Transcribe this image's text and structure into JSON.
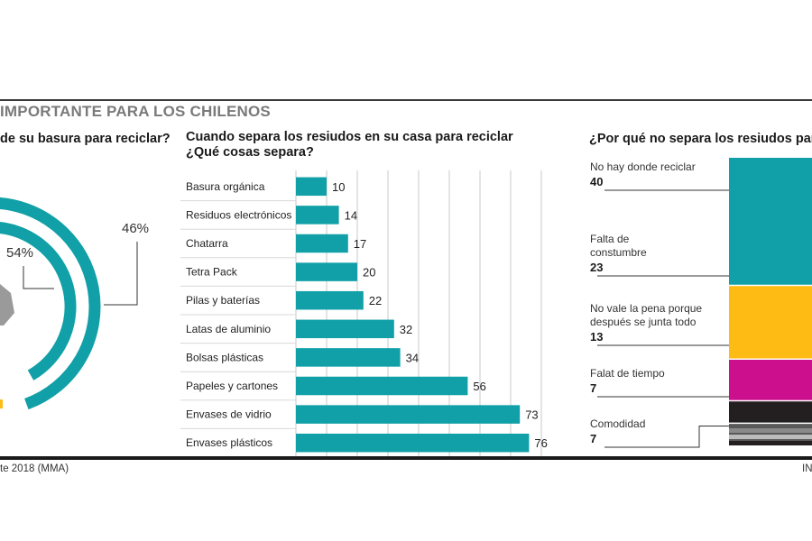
{
  "header": {
    "title": "IMPORTANTE PARA LOS CHILENOS"
  },
  "left_panel": {
    "question": "de su basura para reciclar?",
    "source": "te 2018 (MMA)"
  },
  "middle_panel": {
    "question_line1": "Cuando separa los resiudos en su casa para reciclar",
    "question_line2": "¿Qué cosas separa?"
  },
  "right_panel": {
    "question": "¿Por qué no separa los resiudos para r",
    "credit": "IN"
  },
  "colors": {
    "teal": "#11a0a7",
    "yellow": "#fdbb14",
    "magenta": "#cc0f8c",
    "dark": "#231f20",
    "dark_gray": "#595959",
    "mid_gray": "#8a8a8a",
    "light_gray": "#bcbcbc",
    "grid": "#c8c8c8"
  },
  "chart_data": [
    {
      "type": "pie",
      "title": "",
      "slices": [
        {
          "label": "46%",
          "value": 46,
          "color": "#11a0a7"
        },
        {
          "label": "54%",
          "value": 54,
          "color": "#11a0a7"
        }
      ]
    },
    {
      "type": "bar",
      "orientation": "horizontal",
      "title": "Cuando separa los resiudos en su casa para reciclar ¿Qué cosas separa?",
      "categories": [
        "Basura orgánica",
        "Residuos electrónicos",
        "Chatarra",
        "Tetra Pack",
        "Pilas y baterías",
        "Latas de aluminio",
        "Bolsas plásticas",
        "Papeles y cartones",
        "Envases de vidrio",
        "Envases plásticos"
      ],
      "values": [
        10,
        14,
        17,
        20,
        22,
        32,
        34,
        56,
        73,
        76
      ],
      "xlim": [
        0,
        80
      ],
      "grid": true,
      "color": "#11a0a7"
    },
    {
      "type": "bar",
      "stacked": true,
      "title": "¿Por qué no separa los resiudos para r",
      "categories": [
        "No hay donde reciclar",
        "Falta de constumbre",
        "No vale la pena porque después se junta todo",
        "Falat de tiempo",
        "Comodidad"
      ],
      "label_lines": [
        [
          "No hay donde reciclar"
        ],
        [
          "Falta de",
          "constumbre"
        ],
        [
          "No vale la pena porque",
          "después se junta todo"
        ],
        [
          "Falat de tiempo"
        ],
        [
          "Comodidad"
        ]
      ],
      "values": [
        40,
        23,
        13,
        7,
        7
      ],
      "colors": [
        "#11a0a7",
        "#fdbb14",
        "#cc0f8c",
        "#231f20",
        "#595959"
      ]
    }
  ]
}
